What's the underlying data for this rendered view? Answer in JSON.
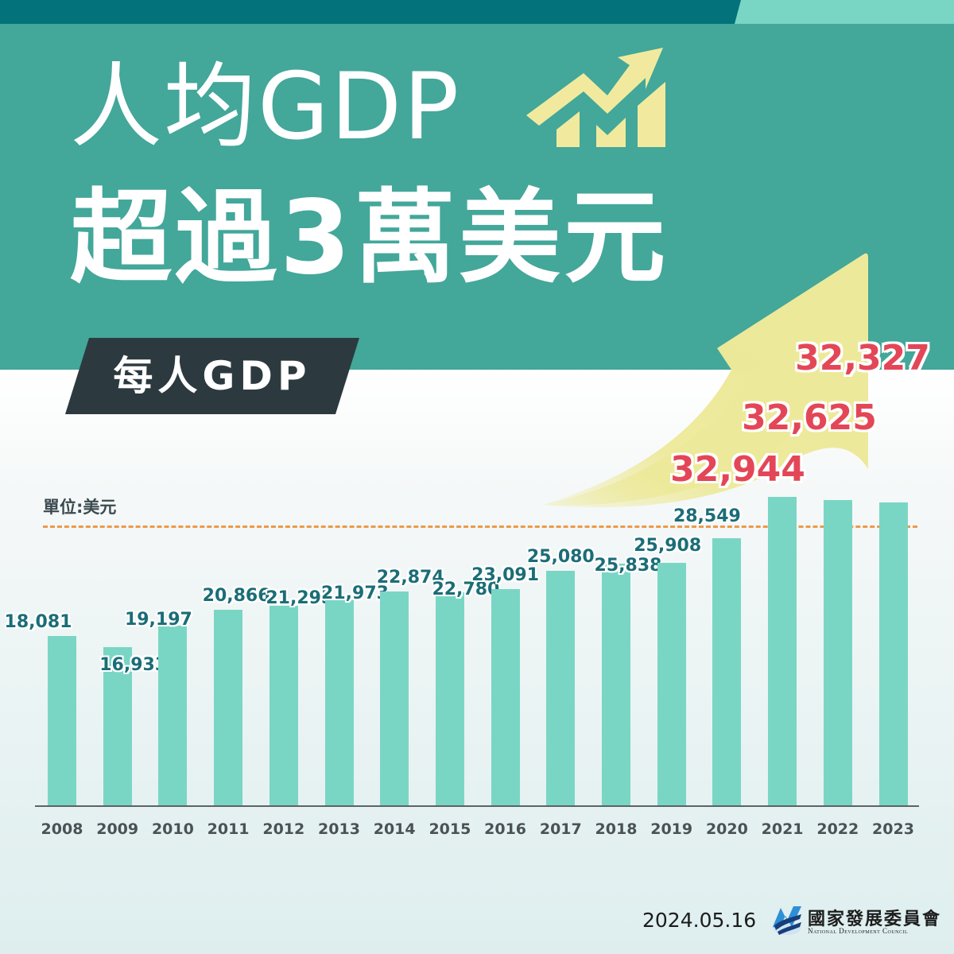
{
  "header": {
    "title_line1": "人均GDP",
    "title_line2": "超過3萬美元",
    "tag_label": "每人GDP",
    "icon": "trend-up-chart-icon"
  },
  "colors": {
    "top_bar": "#03727b",
    "top_bar_accent": "#7ad6c4",
    "hero_bg": "#43a79a",
    "tag_bg": "#2c3a40",
    "bar": "#7ad6c4",
    "value_label": "#1b6d77",
    "highlight_value": "#e34757",
    "reference_line": "#ec9a4b",
    "arrow": "#ede99a"
  },
  "chart_data": {
    "type": "bar",
    "title": "每人GDP",
    "unit_label": "單位:美元",
    "xlabel": "",
    "ylabel": "",
    "categories": [
      "2008",
      "2009",
      "2010",
      "2011",
      "2012",
      "2013",
      "2014",
      "2015",
      "2016",
      "2017",
      "2018",
      "2019",
      "2020",
      "2021",
      "2022",
      "2023"
    ],
    "values": [
      18081,
      16933,
      19197,
      20866,
      21295,
      21973,
      22874,
      22780,
      23091,
      25080,
      25838,
      25908,
      28549,
      32944,
      32625,
      32327
    ],
    "value_labels": [
      "18,081",
      "16,933",
      "19,197",
      "20,866",
      "21,295",
      "21,973",
      "22,874",
      "22,780",
      "23,091",
      "25,080",
      "25,838",
      "25,908",
      "28,549",
      "32,944",
      "32,625",
      "32,327"
    ],
    "highlighted": [
      "2021",
      "2022",
      "2023"
    ],
    "reference_line": {
      "value": 30000,
      "style": "dashed",
      "color": "#ec9a4b"
    },
    "ylim": [
      0,
      33000
    ],
    "grid": false,
    "legend": null
  },
  "footer": {
    "date": "2024.05.16",
    "org_name_zh": "國家發展委員會",
    "org_name_en": "National Development Council",
    "logo": "ndc-logo-icon"
  }
}
